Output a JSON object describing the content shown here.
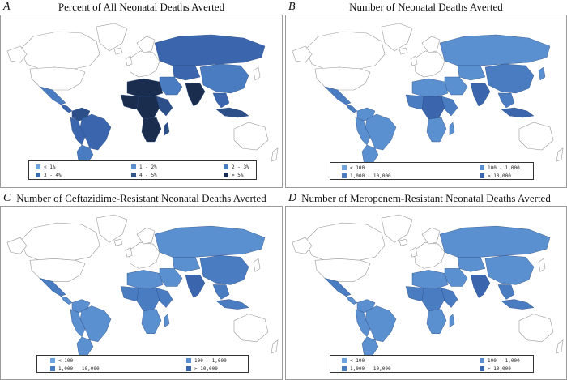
{
  "panels": [
    {
      "letter": "A",
      "title": "Percent of All Neonatal Deaths Averted",
      "legend": [
        {
          "label": "< 1%",
          "color": "#6fa3dd"
        },
        {
          "label": "1 - 2%",
          "color": "#5a8fd0"
        },
        {
          "label": "2 - 3%",
          "color": "#4a7cc2"
        },
        {
          "label": "3 - 4%",
          "color": "#3f6aa8"
        },
        {
          "label": "4 - 5%",
          "color": "#33558a"
        },
        {
          "label": "> 5%",
          "color": "#1b2d4f"
        }
      ]
    },
    {
      "letter": "B",
      "title": "Number of Neonatal Deaths Averted",
      "legend": [
        {
          "label": "< 100",
          "color": "#6fa3dd"
        },
        {
          "label": "100 - 1,000",
          "color": "#5a8fd0"
        },
        {
          "label": "1,000 - 10,000",
          "color": "#4a7cc2"
        },
        {
          "label": "> 10,000",
          "color": "#3b66ad"
        }
      ]
    },
    {
      "letter": "C",
      "title": "Number of Ceftazidime-Resistant Neonatal Deaths Averted",
      "legend": [
        {
          "label": "< 100",
          "color": "#6fa3dd"
        },
        {
          "label": "100 - 1,000",
          "color": "#5a8fd0"
        },
        {
          "label": "1,000 - 10,000",
          "color": "#4a7cc2"
        },
        {
          "label": "> 10,000",
          "color": "#3b66ad"
        }
      ]
    },
    {
      "letter": "D",
      "title": "Number of Meropenem-Resistant Neonatal Deaths Averted",
      "legend": [
        {
          "label": "< 100",
          "color": "#6fa3dd"
        },
        {
          "label": "100 - 1,000",
          "color": "#5a8fd0"
        },
        {
          "label": "1,000 - 10,000",
          "color": "#4a7cc2"
        },
        {
          "label": "> 10,000",
          "color": "#3b66ad"
        }
      ]
    }
  ],
  "colors": {
    "land_outline": "#9a9a9a",
    "border": "#2a4a80",
    "tier": [
      "#6fa3dd",
      "#5a8fd0",
      "#4a7cc2",
      "#3b66ad",
      "#2c4f8a",
      "#1b2d4f"
    ]
  }
}
